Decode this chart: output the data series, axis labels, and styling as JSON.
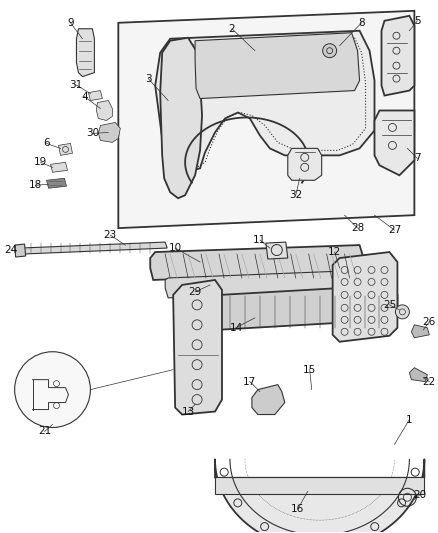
{
  "bg_color": "#ffffff",
  "line_color": "#333333",
  "label_color": "#111111",
  "fig_width": 4.38,
  "fig_height": 5.33,
  "dpi": 100
}
